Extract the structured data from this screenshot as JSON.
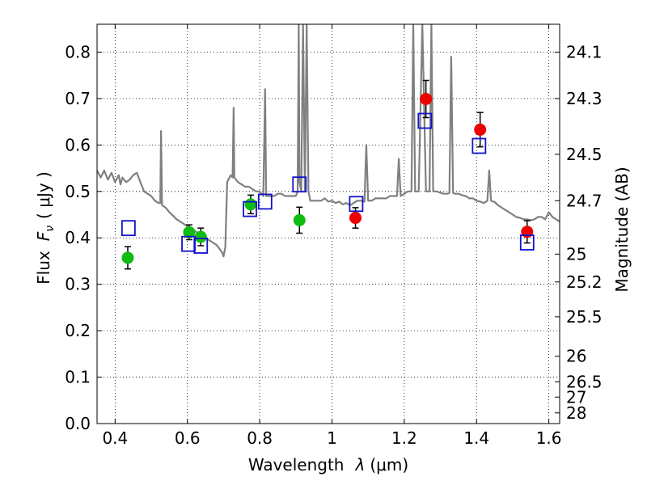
{
  "chart_data": {
    "type": "scatter",
    "xlabel_parts": {
      "text": "Wavelength",
      "symbol": "λ",
      "unit": "(μm)"
    },
    "ylabel_parts": {
      "text": "Flux",
      "symbol": "F",
      "subscript": "ν",
      "unit": "( μJy )"
    },
    "y2label": "Magnitude (AB)",
    "xlim": [
      0.35,
      1.63
    ],
    "ylim": [
      0.0,
      0.86
    ],
    "grid": true,
    "x_ticks": [
      0.4,
      0.6,
      0.8,
      1.0,
      1.2,
      1.4,
      1.6
    ],
    "x_tick_labels": [
      "0.4",
      "0.6",
      "0.8",
      "1",
      "1.2",
      "1.4",
      "1.6"
    ],
    "y_ticks": [
      0.0,
      0.1,
      0.2,
      0.3,
      0.4,
      0.5,
      0.6,
      0.7,
      0.8
    ],
    "y_tick_labels": [
      "0.0",
      "0.1",
      "0.2",
      "0.3",
      "0.4",
      "0.5",
      "0.6",
      "0.7",
      "0.8"
    ],
    "y2_ticks": [
      {
        "label": "24.1",
        "flux": 0.8
      },
      {
        "label": "24.3",
        "flux": 0.7
      },
      {
        "label": "24.5",
        "flux": 0.58
      },
      {
        "label": "24.7",
        "flux": 0.48
      },
      {
        "label": "25",
        "flux": 0.365
      },
      {
        "label": "25.2",
        "flux": 0.305
      },
      {
        "label": "25.5",
        "flux": 0.23
      },
      {
        "label": "26",
        "flux": 0.145
      },
      {
        "label": "26.5",
        "flux": 0.09
      },
      {
        "label": "27",
        "flux": 0.057
      },
      {
        "label": "28",
        "flux": 0.023
      }
    ],
    "series": [
      {
        "marker": "circle-filled",
        "color": "#11bb11",
        "points": [
          {
            "x": 0.435,
            "y": 0.357,
            "err": 0.024
          },
          {
            "x": 0.605,
            "y": 0.412,
            "err": 0.016
          },
          {
            "x": 0.637,
            "y": 0.402,
            "err": 0.019
          },
          {
            "x": 0.775,
            "y": 0.472,
            "err": 0.02
          },
          {
            "x": 0.91,
            "y": 0.438,
            "err": 0.028
          }
        ]
      },
      {
        "marker": "circle-filled",
        "color": "#ee0000",
        "points": [
          {
            "x": 1.065,
            "y": 0.443,
            "err": 0.022
          },
          {
            "x": 1.26,
            "y": 0.699,
            "err": 0.04
          },
          {
            "x": 1.41,
            "y": 0.633,
            "err": 0.037
          },
          {
            "x": 1.54,
            "y": 0.413,
            "err": 0.024
          }
        ]
      },
      {
        "marker": "square-open",
        "color": "#1111cc",
        "points": [
          {
            "x": 0.437,
            "y": 0.421
          },
          {
            "x": 0.603,
            "y": 0.387
          },
          {
            "x": 0.637,
            "y": 0.383
          },
          {
            "x": 0.773,
            "y": 0.462
          },
          {
            "x": 0.815,
            "y": 0.478
          },
          {
            "x": 0.91,
            "y": 0.515
          },
          {
            "x": 1.067,
            "y": 0.473
          },
          {
            "x": 1.257,
            "y": 0.652
          },
          {
            "x": 1.407,
            "y": 0.598
          },
          {
            "x": 1.54,
            "y": 0.39
          }
        ]
      }
    ],
    "spectrum": {
      "color": "#808080",
      "x": [
        0.35,
        0.36,
        0.37,
        0.38,
        0.39,
        0.4,
        0.41,
        0.415,
        0.42,
        0.43,
        0.44,
        0.45,
        0.46,
        0.47,
        0.48,
        0.49,
        0.5,
        0.51,
        0.52,
        0.525,
        0.527,
        0.53,
        0.54,
        0.55,
        0.56,
        0.57,
        0.58,
        0.59,
        0.6,
        0.61,
        0.62,
        0.63,
        0.64,
        0.65,
        0.66,
        0.67,
        0.68,
        0.69,
        0.695,
        0.7,
        0.705,
        0.71,
        0.72,
        0.725,
        0.728,
        0.73,
        0.74,
        0.75,
        0.76,
        0.77,
        0.78,
        0.79,
        0.8,
        0.81,
        0.815,
        0.818,
        0.82,
        0.83,
        0.84,
        0.85,
        0.86,
        0.87,
        0.88,
        0.89,
        0.9,
        0.905,
        0.908,
        0.91,
        0.915,
        0.92,
        0.925,
        0.93,
        0.935,
        0.94,
        0.95,
        0.96,
        0.97,
        0.98,
        0.99,
        1.0,
        1.01,
        1.02,
        1.03,
        1.04,
        1.05,
        1.06,
        1.07,
        1.08,
        1.09,
        1.095,
        1.1,
        1.11,
        1.12,
        1.13,
        1.14,
        1.15,
        1.16,
        1.17,
        1.18,
        1.185,
        1.19,
        1.2,
        1.21,
        1.22,
        1.225,
        1.23,
        1.24,
        1.25,
        1.26,
        1.27,
        1.275,
        1.28,
        1.29,
        1.3,
        1.31,
        1.32,
        1.325,
        1.33,
        1.335,
        1.34,
        1.35,
        1.36,
        1.37,
        1.38,
        1.39,
        1.4,
        1.41,
        1.42,
        1.43,
        1.435,
        1.44,
        1.45,
        1.46,
        1.47,
        1.48,
        1.49,
        1.5,
        1.51,
        1.52,
        1.53,
        1.54,
        1.55,
        1.56,
        1.57,
        1.58,
        1.59,
        1.6,
        1.61,
        1.62,
        1.63
      ],
      "y": [
        0.545,
        0.53,
        0.545,
        0.525,
        0.54,
        0.52,
        0.535,
        0.515,
        0.53,
        0.52,
        0.525,
        0.535,
        0.54,
        0.52,
        0.5,
        0.495,
        0.49,
        0.48,
        0.475,
        0.475,
        0.63,
        0.47,
        0.465,
        0.455,
        0.448,
        0.44,
        0.435,
        0.43,
        0.425,
        0.42,
        0.415,
        0.41,
        0.405,
        0.4,
        0.395,
        0.39,
        0.385,
        0.375,
        0.37,
        0.36,
        0.38,
        0.52,
        0.535,
        0.53,
        0.68,
        0.53,
        0.52,
        0.515,
        0.51,
        0.51,
        0.505,
        0.5,
        0.5,
        0.49,
        0.72,
        0.49,
        0.49,
        0.49,
        0.49,
        0.495,
        0.495,
        0.49,
        0.49,
        0.49,
        0.49,
        0.5,
        0.86,
        0.52,
        0.5,
        0.86,
        0.5,
        0.86,
        0.5,
        0.48,
        0.48,
        0.48,
        0.48,
        0.485,
        0.478,
        0.48,
        0.475,
        0.478,
        0.472,
        0.475,
        0.47,
        0.475,
        0.48,
        0.48,
        0.478,
        0.6,
        0.48,
        0.48,
        0.485,
        0.485,
        0.485,
        0.485,
        0.49,
        0.49,
        0.49,
        0.57,
        0.49,
        0.495,
        0.5,
        0.5,
        0.86,
        0.5,
        0.5,
        0.86,
        0.5,
        0.5,
        0.86,
        0.5,
        0.5,
        0.497,
        0.495,
        0.495,
        0.497,
        0.79,
        0.497,
        0.495,
        0.495,
        0.492,
        0.49,
        0.485,
        0.485,
        0.48,
        0.478,
        0.475,
        0.48,
        0.545,
        0.48,
        0.477,
        0.47,
        0.465,
        0.46,
        0.455,
        0.45,
        0.445,
        0.443,
        0.44,
        0.44,
        0.438,
        0.44,
        0.445,
        0.445,
        0.44,
        0.455,
        0.445,
        0.44,
        0.435
      ]
    }
  }
}
